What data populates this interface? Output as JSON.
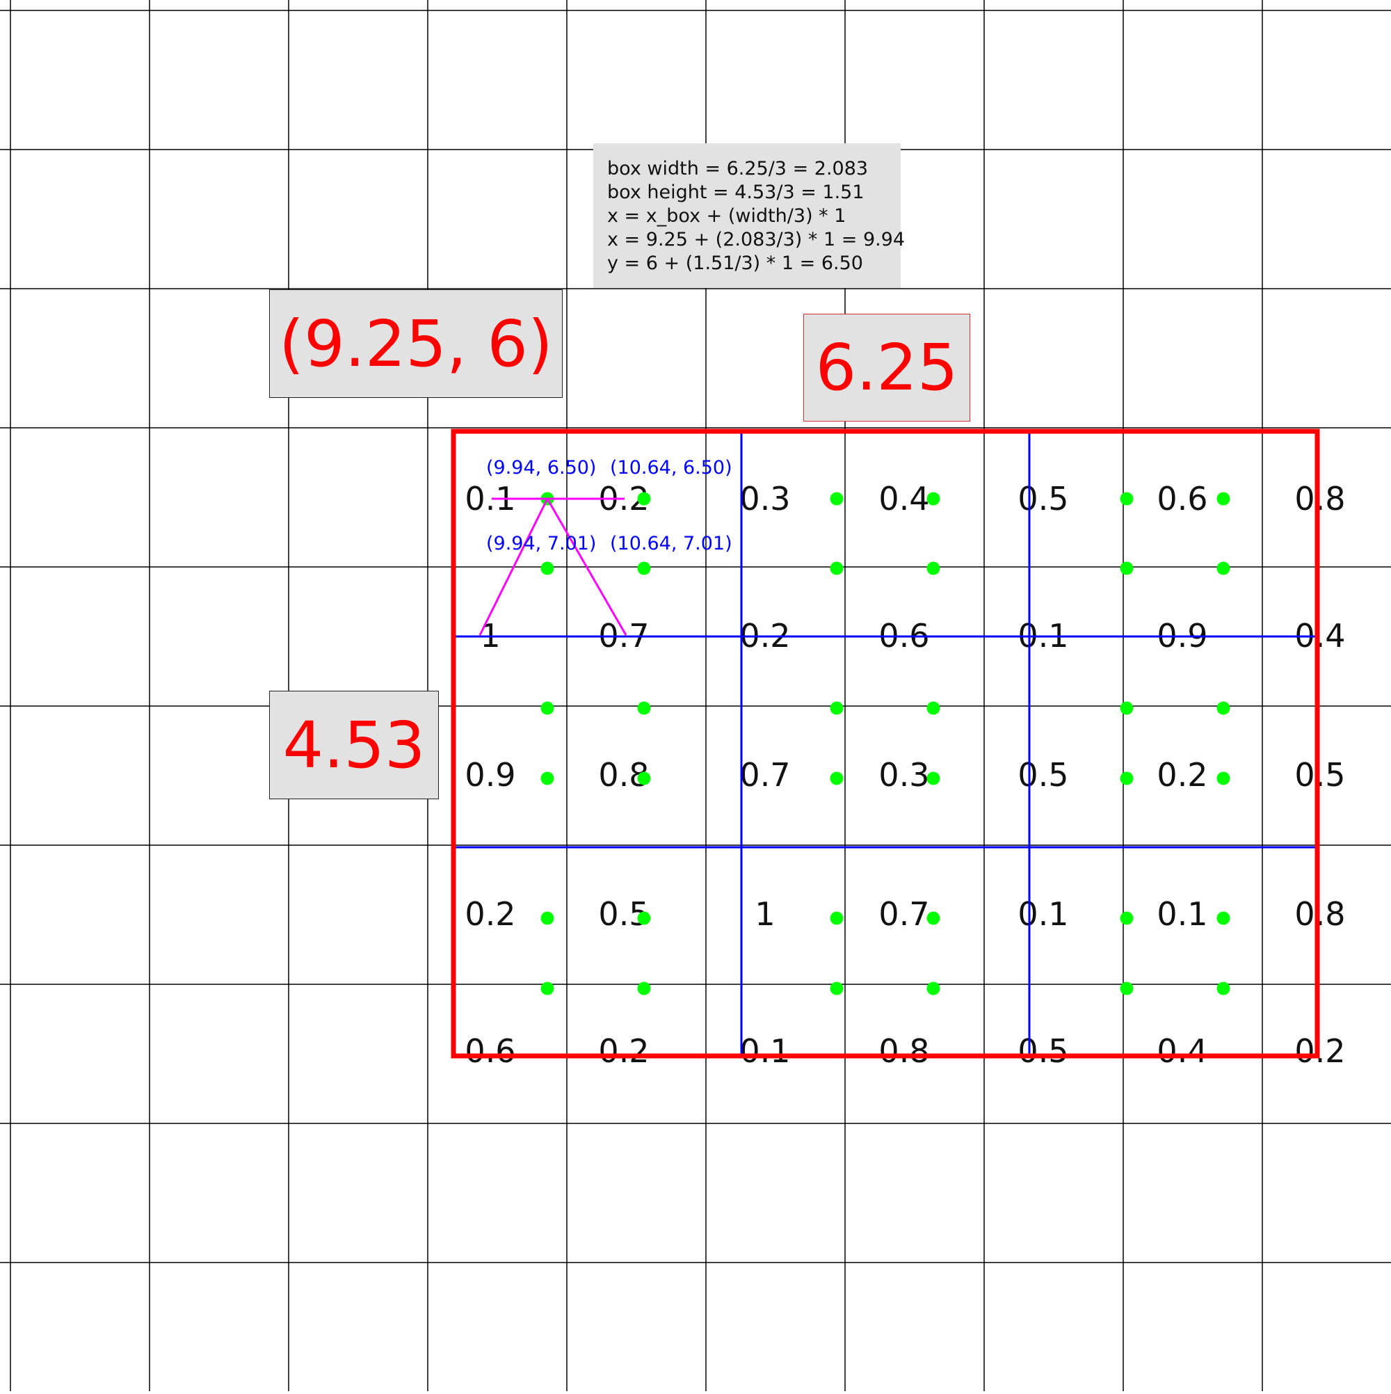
{
  "labels": {
    "corner": "(9.25, 6)",
    "box_width": "6.25",
    "box_height": "4.53"
  },
  "formula_lines": [
    "box width = 6.25/3 = 2.083",
    "box height = 4.53/3 = 1.51",
    "x = x_box + (width/3) * 1",
    "x = 9.25 + (2.083/3) * 1 = 9.94",
    "y = 6 + (1.51/3) * 1 = 6.50"
  ],
  "sample_point_labels": [
    "(9.94, 6.50)",
    "(10.64, 6.50)",
    "(9.94, 7.01)",
    "(10.64, 7.01)"
  ],
  "feature_values": [
    [
      "0.1",
      "0.2",
      "0.3",
      "0.4",
      "0.5",
      "0.6",
      "0.8"
    ],
    [
      "1",
      "0.7",
      "0.2",
      "0.6",
      "0.1",
      "0.9",
      "0.4"
    ],
    [
      "0.9",
      "0.8",
      "0.7",
      "0.3",
      "0.5",
      "0.2",
      "0.5"
    ],
    [
      "0.2",
      "0.5",
      "1",
      "0.7",
      "0.1",
      "0.1",
      "0.8"
    ],
    [
      "0.6",
      "0.2",
      "0.1",
      "0.8",
      "0.5",
      "0.4",
      "0.2"
    ]
  ],
  "colors": {
    "roi_box": "#ff0000",
    "bin_lines": "#0000ff",
    "sample_points": "#00ff00",
    "interpolation_lines": "#ff00ff",
    "grid": "#000000"
  }
}
